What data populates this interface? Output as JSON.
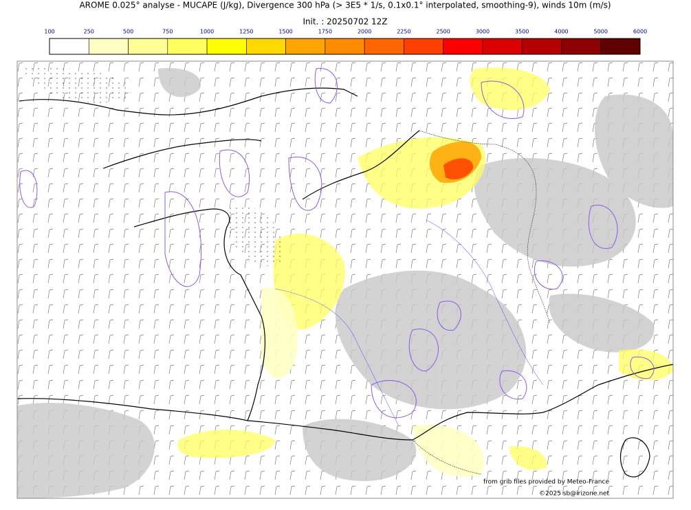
{
  "title": "AROME 0.025° analyse - MUCAPE (J/kg), Divergence 300 hPa (> 3E5 * 1/s, 0.1x0.1° interpolated, smoothing-9), winds 10m (m/s)",
  "init": "Init. : 20250702 12Z",
  "colorbar": {
    "ticks": [
      100,
      250,
      500,
      750,
      1000,
      1250,
      1500,
      1750,
      2000,
      2250,
      2500,
      3000,
      3500,
      4000,
      5000,
      6000
    ],
    "colors": [
      "#ffffff",
      "#ffffc4",
      "#ffff96",
      "#ffff60",
      "#ffff00",
      "#ffd800",
      "#ffa500",
      "#ff8c00",
      "#ff6600",
      "#ff3f00",
      "#ff0000",
      "#dd0000",
      "#b40000",
      "#8b0000",
      "#600000"
    ]
  },
  "credits": [
    "from grib files provided by Meteo-France",
    "©2025 sb@irizone.net"
  ]
}
